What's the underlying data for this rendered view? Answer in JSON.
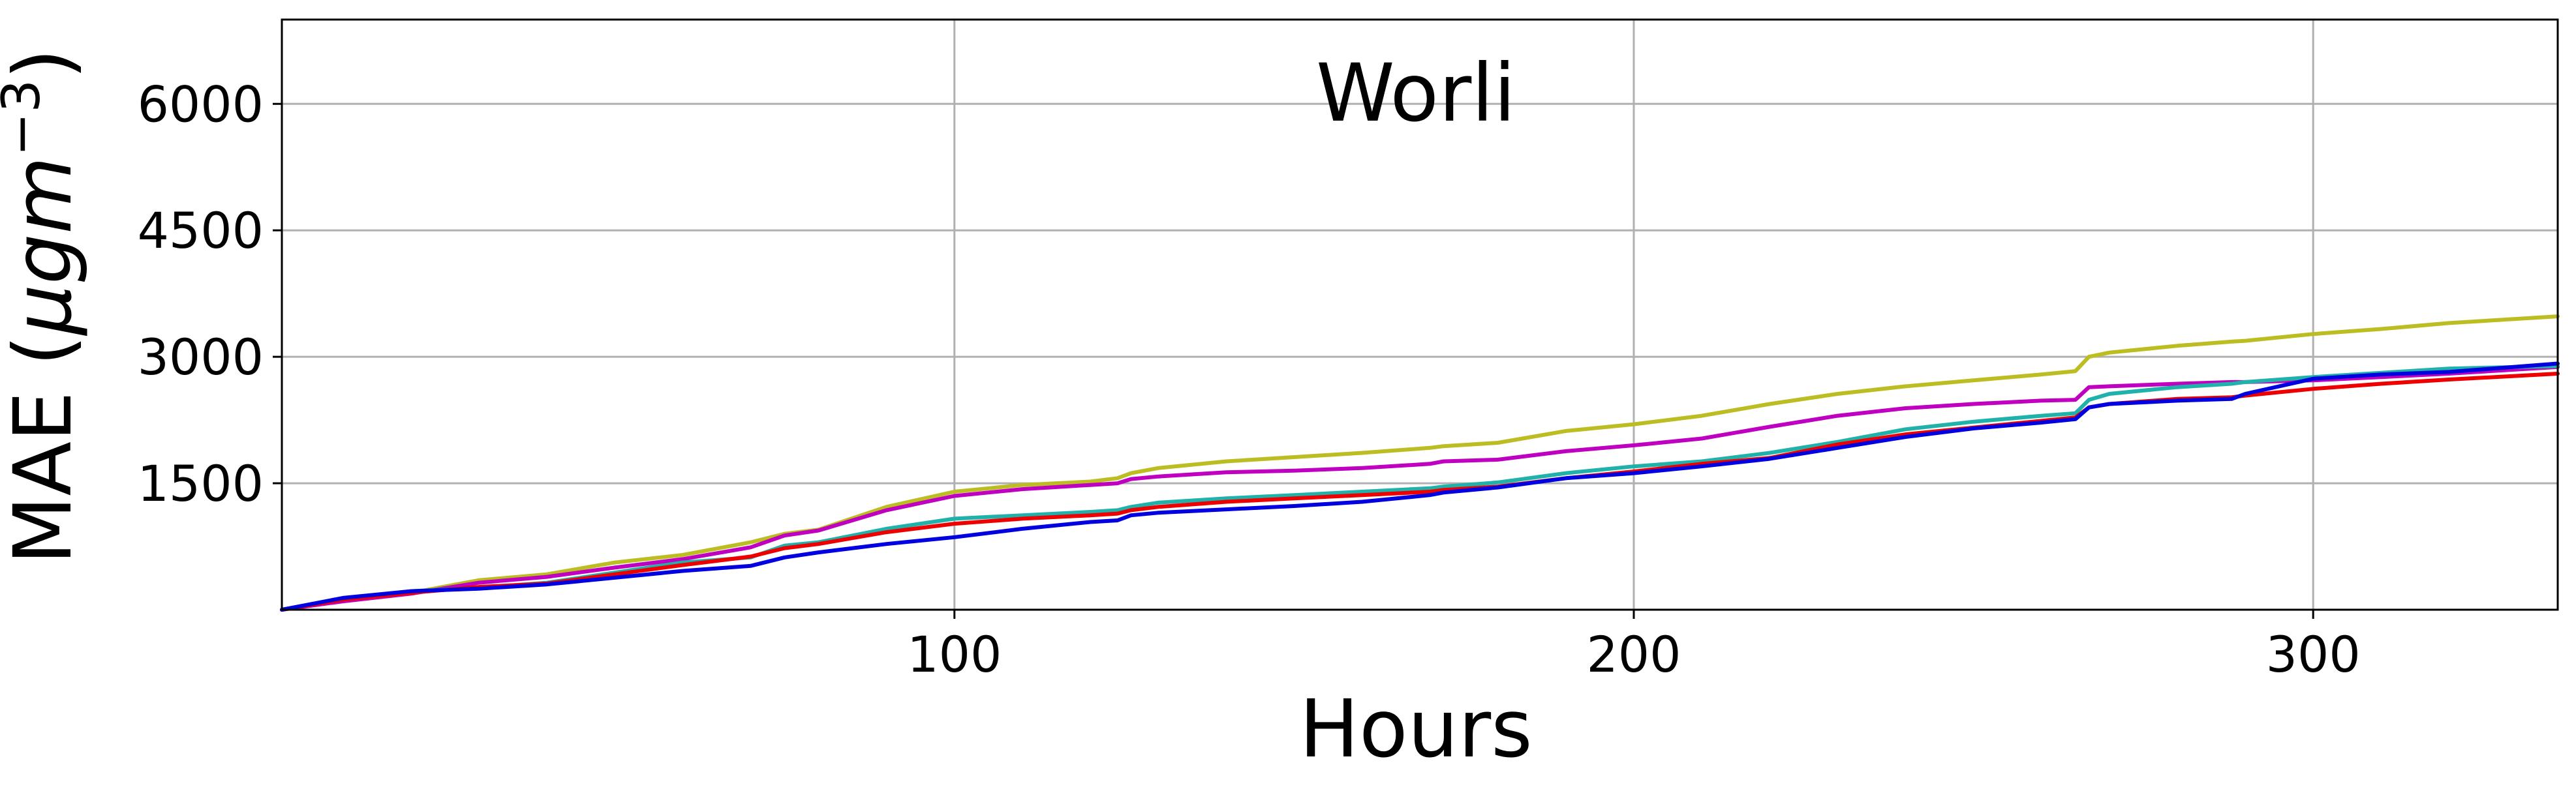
{
  "chart_data": {
    "type": "line",
    "title": "Worli",
    "xlabel": "Hours",
    "ylabel_main": "MAE (",
    "ylabel_mu": "μgm",
    "ylabel_exp": "−3",
    "ylabel_close": ")",
    "xlim": [
      1,
      336
    ],
    "ylim": [
      0,
      7000
    ],
    "xticks": [
      100,
      200,
      300
    ],
    "xtick_labels": [
      "100",
      "200",
      "300"
    ],
    "yticks": [
      1500,
      3000,
      4500,
      6000
    ],
    "ytick_labels": [
      "1500",
      "3000",
      "4500",
      "6000"
    ],
    "grid": true,
    "x": [
      1,
      10,
      20,
      30,
      40,
      50,
      60,
      70,
      75,
      80,
      90,
      100,
      110,
      120,
      124,
      126,
      130,
      140,
      150,
      160,
      170,
      172,
      180,
      190,
      200,
      210,
      220,
      230,
      240,
      250,
      260,
      265,
      267,
      270,
      280,
      288,
      290,
      300,
      310,
      320,
      336
    ],
    "series": [
      {
        "color": "#bcbd22",
        "values": [
          0,
          120,
          200,
          350,
          420,
          560,
          650,
          800,
          900,
          950,
          1220,
          1400,
          1480,
          1520,
          1560,
          1620,
          1680,
          1760,
          1810,
          1860,
          1920,
          1940,
          1980,
          2120,
          2200,
          2300,
          2440,
          2560,
          2650,
          2720,
          2790,
          2830,
          3000,
          3050,
          3130,
          3180,
          3190,
          3270,
          3330,
          3400,
          3480
        ]
      },
      {
        "color": "#c000c0",
        "values": [
          0,
          100,
          190,
          320,
          390,
          500,
          600,
          740,
          880,
          940,
          1180,
          1350,
          1430,
          1480,
          1500,
          1550,
          1580,
          1630,
          1650,
          1680,
          1730,
          1760,
          1780,
          1880,
          1950,
          2030,
          2170,
          2300,
          2390,
          2440,
          2480,
          2490,
          2640,
          2650,
          2680,
          2700,
          2700,
          2720,
          2760,
          2800,
          2880
        ]
      },
      {
        "color": "#20b2aa",
        "values": [
          0,
          130,
          220,
          260,
          320,
          440,
          560,
          620,
          760,
          800,
          960,
          1080,
          1120,
          1160,
          1180,
          1220,
          1270,
          1320,
          1360,
          1400,
          1440,
          1460,
          1510,
          1620,
          1700,
          1760,
          1860,
          1990,
          2140,
          2230,
          2300,
          2330,
          2490,
          2560,
          2640,
          2680,
          2700,
          2760,
          2810,
          2860,
          2890
        ]
      },
      {
        "color": "#ee0000",
        "values": [
          0,
          120,
          200,
          270,
          310,
          420,
          530,
          630,
          730,
          780,
          920,
          1020,
          1080,
          1120,
          1140,
          1180,
          1220,
          1280,
          1320,
          1360,
          1400,
          1420,
          1460,
          1560,
          1640,
          1730,
          1800,
          1960,
          2080,
          2160,
          2240,
          2280,
          2400,
          2440,
          2500,
          2520,
          2540,
          2620,
          2680,
          2730,
          2800
        ]
      },
      {
        "color": "#0000e0",
        "values": [
          0,
          140,
          220,
          250,
          300,
          380,
          460,
          520,
          620,
          680,
          780,
          860,
          960,
          1040,
          1060,
          1120,
          1150,
          1190,
          1230,
          1280,
          1360,
          1390,
          1450,
          1560,
          1620,
          1700,
          1790,
          1920,
          2050,
          2150,
          2220,
          2260,
          2400,
          2440,
          2480,
          2500,
          2560,
          2740,
          2790,
          2820,
          2920
        ]
      }
    ]
  }
}
